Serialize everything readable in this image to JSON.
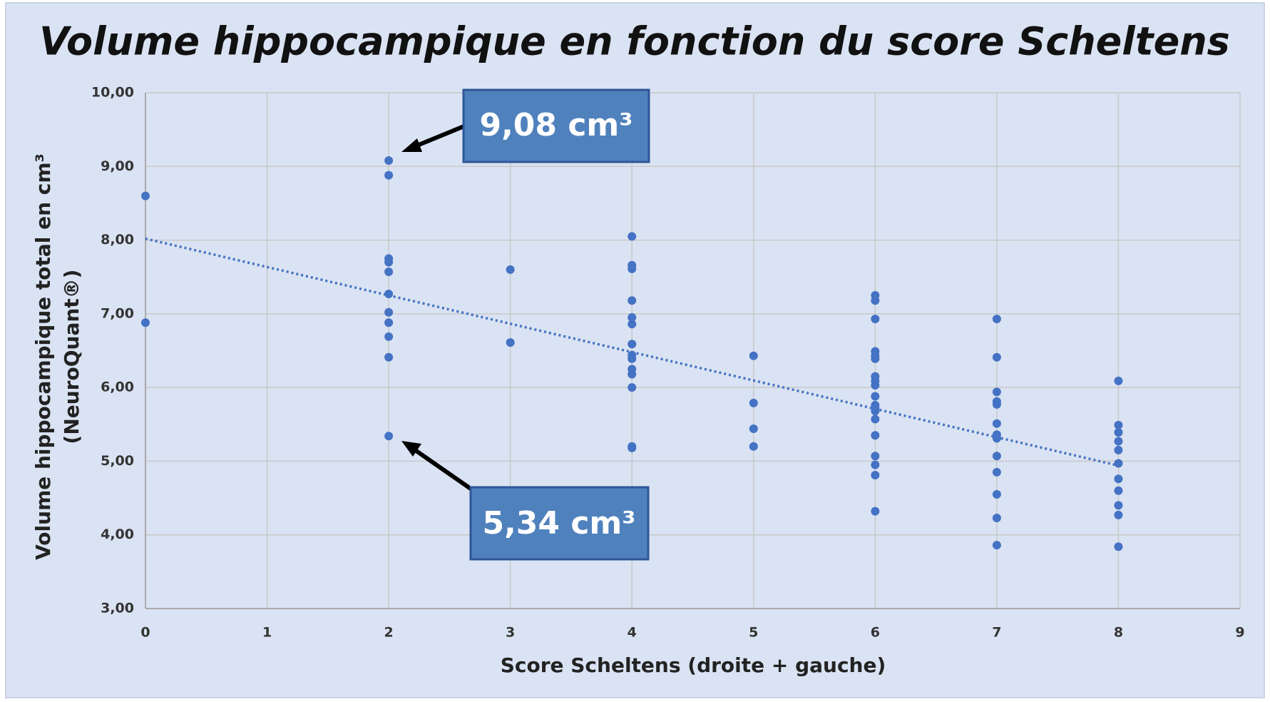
{
  "chart_data": {
    "type": "scatter",
    "title": "Volume hippocampique en fonction du score Scheltens",
    "x_label": "Score Scheltens (droite + gauche)",
    "y_label": [
      "Volume hippocampique total en cm³",
      "(NeuroQuant®)"
    ],
    "color": "#4472c4",
    "grid": true,
    "x": [
      0,
      0,
      2,
      2,
      2,
      2,
      2,
      2,
      2,
      2,
      2,
      2,
      2,
      3,
      3,
      4,
      4,
      4,
      4,
      4,
      4,
      4,
      4,
      4,
      4,
      4,
      4,
      4,
      4,
      5,
      5,
      5,
      5,
      6,
      6,
      6,
      6,
      6,
      6,
      6,
      6,
      6,
      6,
      6,
      6,
      6,
      6,
      6,
      6,
      6,
      6,
      6,
      7,
      7,
      7,
      7,
      7,
      7,
      7,
      7,
      7,
      7,
      7,
      7,
      7,
      8,
      8,
      8,
      8,
      8,
      8,
      8,
      8,
      8,
      8,
      8
    ],
    "values": [
      8.6,
      6.88,
      9.08,
      8.88,
      7.75,
      7.7,
      7.57,
      7.27,
      7.02,
      6.88,
      6.69,
      6.41,
      5.34,
      7.6,
      6.61,
      8.05,
      7.66,
      7.61,
      7.18,
      6.95,
      6.86,
      6.59,
      6.44,
      6.39,
      6.25,
      6.18,
      6.0,
      5.2,
      5.18,
      6.43,
      5.79,
      5.44,
      5.2,
      7.25,
      7.18,
      6.93,
      6.49,
      6.43,
      6.39,
      6.15,
      6.09,
      6.03,
      5.88,
      5.76,
      5.72,
      5.68,
      5.57,
      5.35,
      5.07,
      4.95,
      4.81,
      4.32,
      6.93,
      6.41,
      5.94,
      5.81,
      5.77,
      5.51,
      5.36,
      5.31,
      5.07,
      4.85,
      4.55,
      4.23,
      3.86,
      6.09,
      5.49,
      5.39,
      5.27,
      5.15,
      4.97,
      4.76,
      4.6,
      4.4,
      4.27,
      3.84
    ],
    "trendline": {
      "x": [
        0,
        8
      ],
      "values": [
        8.02,
        4.94
      ]
    },
    "annotations": [
      {
        "text": "9,08 cm³",
        "x": 2,
        "value": 9.08
      },
      {
        "text": "5,34 cm³",
        "x": 2,
        "value": 5.34
      }
    ],
    "xlim": [
      0,
      9
    ],
    "xticks": [
      0,
      1,
      2,
      3,
      4,
      5,
      6,
      7,
      8,
      9
    ],
    "ylim": [
      3,
      10
    ],
    "yticks": [
      {
        "value": 3,
        "label": "3,00"
      },
      {
        "value": 4,
        "label": "4,00"
      },
      {
        "value": 5,
        "label": "5,00"
      },
      {
        "value": 6,
        "label": "6,00"
      },
      {
        "value": 7,
        "label": "7,00"
      },
      {
        "value": 8,
        "label": "8,00"
      },
      {
        "value": 9,
        "label": "9,00"
      },
      {
        "value": 10,
        "label": "10,00"
      }
    ]
  }
}
